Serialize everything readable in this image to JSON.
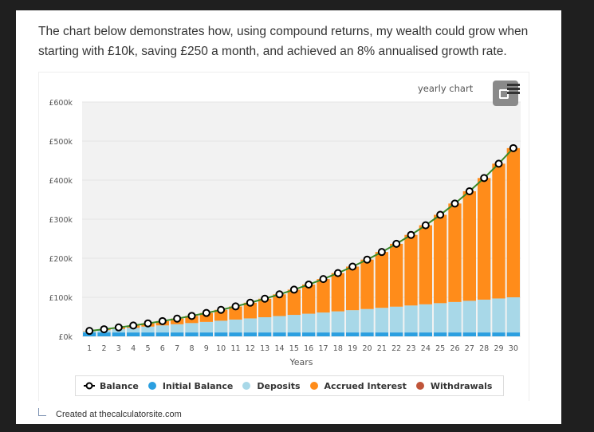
{
  "intro_text": "The chart below demonstrates how, using compound returns, my wealth could grow when starting with £10k, saving £250 a month, and achieved an 8% annualised growth rate.",
  "chart_toolbar": {
    "chart_type_label": "yearly chart",
    "menu_icon": "hamburger-menu-icon",
    "expand_icon": "fullscreen-expand-icon"
  },
  "credit": {
    "icon": "corner-arrow-icon",
    "text": "Created at thecalculatorsite.com"
  },
  "colors": {
    "balance_line": "#3a8a2a",
    "initial_balance": "#2b9fe0",
    "deposits": "#a8d8e8",
    "accrued_interest": "#ff8c1a",
    "withdrawals": "#c0553a",
    "plot_bg": "#f2f2f2"
  },
  "chart_data": {
    "type": "bar",
    "stacked": true,
    "title": "",
    "xlabel": "Years",
    "ylabel": "",
    "ylim": [
      0,
      600000
    ],
    "yticks": [
      0,
      100000,
      200000,
      300000,
      400000,
      500000,
      600000
    ],
    "ytick_labels": [
      "£0k",
      "£100k",
      "£200k",
      "£300k",
      "£400k",
      "£500k",
      "£600k"
    ],
    "grid": true,
    "legend_position": "bottom",
    "categories": [
      "1",
      "2",
      "3",
      "4",
      "5",
      "6",
      "7",
      "8",
      "9",
      "10",
      "11",
      "12",
      "13",
      "14",
      "15",
      "16",
      "17",
      "18",
      "19",
      "20",
      "21",
      "22",
      "23",
      "24",
      "25",
      "26",
      "27",
      "28",
      "29",
      "30"
    ],
    "series": [
      {
        "name": "Initial Balance",
        "type": "bar",
        "values": [
          10000,
          10000,
          10000,
          10000,
          10000,
          10000,
          10000,
          10000,
          10000,
          10000,
          10000,
          10000,
          10000,
          10000,
          10000,
          10000,
          10000,
          10000,
          10000,
          10000,
          10000,
          10000,
          10000,
          10000,
          10000,
          10000,
          10000,
          10000,
          10000,
          10000
        ]
      },
      {
        "name": "Deposits",
        "type": "bar",
        "values": [
          3000,
          6000,
          9000,
          12000,
          15000,
          18000,
          21000,
          24000,
          27000,
          30000,
          33000,
          36000,
          39000,
          42000,
          45000,
          48000,
          51000,
          54000,
          57000,
          60000,
          63000,
          66000,
          69000,
          72000,
          75000,
          78000,
          81000,
          84000,
          87000,
          90000
        ]
      },
      {
        "name": "Accrued Interest",
        "type": "bar",
        "values": [
          942,
          2213,
          3836,
          5845,
          8266,
          11141,
          14502,
          18393,
          22853,
          27932,
          33684,
          40162,
          47425,
          55542,
          64578,
          74616,
          85737,
          98029,
          111591,
          126525,
          142948,
          160984,
          180766,
          202439,
          226160,
          252099,
          280441,
          311384,
          345143,
          381951
        ]
      },
      {
        "name": "Withdrawals",
        "type": "bar",
        "values": [
          0,
          0,
          0,
          0,
          0,
          0,
          0,
          0,
          0,
          0,
          0,
          0,
          0,
          0,
          0,
          0,
          0,
          0,
          0,
          0,
          0,
          0,
          0,
          0,
          0,
          0,
          0,
          0,
          0,
          0
        ]
      },
      {
        "name": "Balance",
        "type": "line",
        "values": [
          13942,
          18213,
          22836,
          27845,
          33266,
          39141,
          45502,
          52393,
          59853,
          67932,
          76684,
          86162,
          96425,
          107542,
          119578,
          132616,
          146737,
          162029,
          178591,
          196525,
          215948,
          236984,
          259766,
          284439,
          311160,
          340099,
          371441,
          405384,
          442143,
          481951
        ]
      }
    ]
  },
  "legend": [
    {
      "label": "Balance",
      "key": "balance"
    },
    {
      "label": "Initial Balance",
      "key": "initial_balance"
    },
    {
      "label": "Deposits",
      "key": "deposits"
    },
    {
      "label": "Accrued Interest",
      "key": "accrued_interest"
    },
    {
      "label": "Withdrawals",
      "key": "withdrawals"
    }
  ]
}
